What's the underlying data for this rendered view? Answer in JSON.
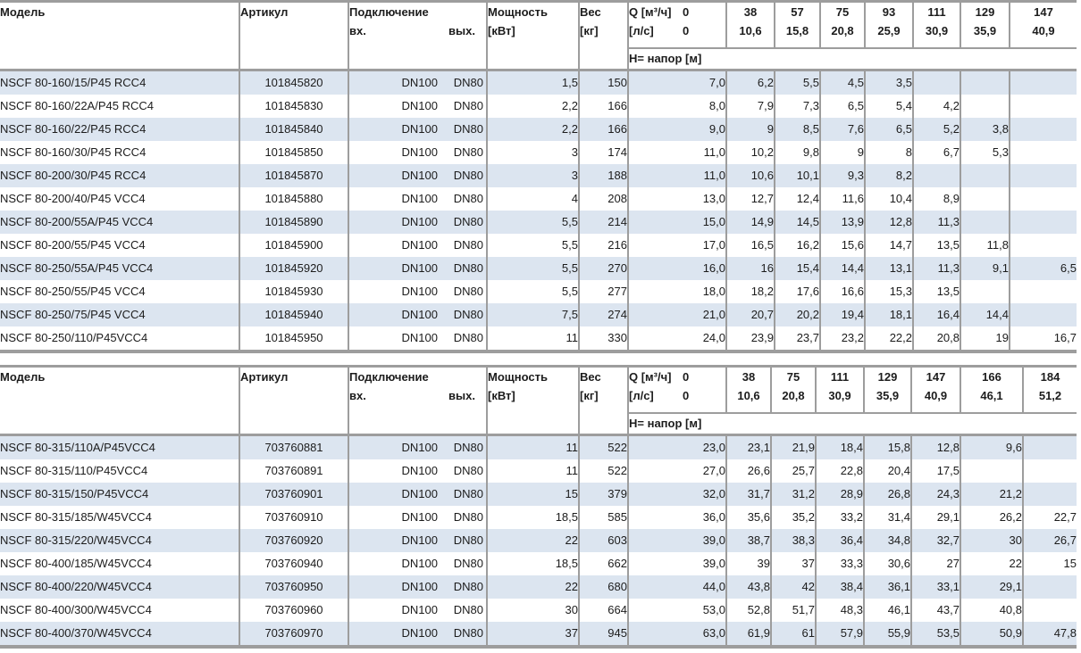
{
  "colors": {
    "row_alt": "#dce5f0",
    "border": "#9d9d9d",
    "background": "#ffffff"
  },
  "header_labels": {
    "model": "Модель",
    "article": "Артикул",
    "connection": "Подключение",
    "inlet": "вх.",
    "outlet": "вых.",
    "power_line1": "Мощность",
    "power_line2": "[кВт]",
    "weight_line1": "Вес",
    "weight_line2": "[кг]",
    "q_line1_label": "Q [м³/ч]",
    "q_line1_zero": "0",
    "q_line2_label": "[л/с]",
    "q_line2_zero": "0",
    "head_label": "H= напор [м]"
  },
  "tables": [
    {
      "q_m3h": [
        "38",
        "57",
        "75",
        "93",
        "111",
        "129",
        "147"
      ],
      "q_ls": [
        "10,6",
        "15,8",
        "20,8",
        "25,9",
        "30,9",
        "35,9",
        "40,9"
      ],
      "rows": [
        {
          "model": "NSCF 80-160/15/P45 RCC4",
          "article": "101845820",
          "inlet": "DN100",
          "outlet": "DN80",
          "power": "1,5",
          "weight": "150",
          "h": [
            "7,0",
            "6,2",
            "5,5",
            "4,5",
            "3,5",
            "",
            "",
            ""
          ]
        },
        {
          "model": "NSCF 80-160/22A/P45 RCC4",
          "article": "101845830",
          "inlet": "DN100",
          "outlet": "DN80",
          "power": "2,2",
          "weight": "166",
          "h": [
            "8,0",
            "7,9",
            "7,3",
            "6,5",
            "5,4",
            "4,2",
            "",
            ""
          ]
        },
        {
          "model": "NSCF 80-160/22/P45 RCC4",
          "article": "101845840",
          "inlet": "DN100",
          "outlet": "DN80",
          "power": "2,2",
          "weight": "166",
          "h": [
            "9,0",
            "9",
            "8,5",
            "7,6",
            "6,5",
            "5,2",
            "3,8",
            ""
          ]
        },
        {
          "model": "NSCF 80-160/30/P45 RCC4",
          "article": "101845850",
          "inlet": "DN100",
          "outlet": "DN80",
          "power": "3",
          "weight": "174",
          "h": [
            "11,0",
            "10,2",
            "9,8",
            "9",
            "8",
            "6,7",
            "5,3",
            ""
          ]
        },
        {
          "model": "NSCF 80-200/30/P45 RCC4",
          "article": "101845870",
          "inlet": "DN100",
          "outlet": "DN80",
          "power": "3",
          "weight": "188",
          "h": [
            "11,0",
            "10,6",
            "10,1",
            "9,3",
            "8,2",
            "",
            "",
            ""
          ]
        },
        {
          "model": "NSCF 80-200/40/P45 VCC4",
          "article": "101845880",
          "inlet": "DN100",
          "outlet": "DN80",
          "power": "4",
          "weight": "208",
          "h": [
            "13,0",
            "12,7",
            "12,4",
            "11,6",
            "10,4",
            "8,9",
            "",
            ""
          ]
        },
        {
          "model": "NSCF 80-200/55A/P45 VCC4",
          "article": "101845890",
          "inlet": "DN100",
          "outlet": "DN80",
          "power": "5,5",
          "weight": "214",
          "h": [
            "15,0",
            "14,9",
            "14,5",
            "13,9",
            "12,8",
            "11,3",
            "",
            ""
          ]
        },
        {
          "model": "NSCF 80-200/55/P45 VCC4",
          "article": "101845900",
          "inlet": "DN100",
          "outlet": "DN80",
          "power": "5,5",
          "weight": "216",
          "h": [
            "17,0",
            "16,5",
            "16,2",
            "15,6",
            "14,7",
            "13,5",
            "11,8",
            ""
          ]
        },
        {
          "model": "NSCF 80-250/55A/P45 VCC4",
          "article": "101845920",
          "inlet": "DN100",
          "outlet": "DN80",
          "power": "5,5",
          "weight": "270",
          "h": [
            "16,0",
            "16",
            "15,4",
            "14,4",
            "13,1",
            "11,3",
            "9,1",
            "6,5"
          ]
        },
        {
          "model": "NSCF 80-250/55/P45 VCC4",
          "article": "101845930",
          "inlet": "DN100",
          "outlet": "DN80",
          "power": "5,5",
          "weight": "277",
          "h": [
            "18,0",
            "18,2",
            "17,6",
            "16,6",
            "15,3",
            "13,5",
            "",
            ""
          ]
        },
        {
          "model": "NSCF 80-250/75/P45 VCC4",
          "article": "101845940",
          "inlet": "DN100",
          "outlet": "DN80",
          "power": "7,5",
          "weight": "274",
          "h": [
            "21,0",
            "20,7",
            "20,2",
            "19,4",
            "18,1",
            "16,4",
            "14,4",
            ""
          ]
        },
        {
          "model": "NSCF 80-250/110/P45VCC4",
          "article": "101845950",
          "inlet": "DN100",
          "outlet": "DN80",
          "power": "11",
          "weight": "330",
          "h": [
            "24,0",
            "23,9",
            "23,7",
            "23,2",
            "22,2",
            "20,8",
            "19",
            "16,7"
          ]
        }
      ]
    },
    {
      "q_m3h": [
        "38",
        "75",
        "111",
        "129",
        "147",
        "166",
        "184"
      ],
      "q_ls": [
        "10,6",
        "20,8",
        "30,9",
        "35,9",
        "40,9",
        "46,1",
        "51,2"
      ],
      "rows": [
        {
          "model": "NSCF 80-315/110A/P45VCC4",
          "article": "703760881",
          "inlet": "DN100",
          "outlet": "DN80",
          "power": "11",
          "weight": "522",
          "h": [
            "23,0",
            "23,1",
            "21,9",
            "18,4",
            "15,8",
            "12,8",
            "9,6",
            ""
          ]
        },
        {
          "model": "NSCF 80-315/110/P45VCC4",
          "article": "703760891",
          "inlet": "DN100",
          "outlet": "DN80",
          "power": "11",
          "weight": "522",
          "h": [
            "27,0",
            "26,6",
            "25,7",
            "22,8",
            "20,4",
            "17,5",
            "",
            ""
          ]
        },
        {
          "model": "NSCF 80-315/150/P45VCC4",
          "article": "703760901",
          "inlet": "DN100",
          "outlet": "DN80",
          "power": "15",
          "weight": "379",
          "h": [
            "32,0",
            "31,7",
            "31,2",
            "28,9",
            "26,8",
            "24,3",
            "21,2",
            ""
          ]
        },
        {
          "model": "NSCF 80-315/185/W45VCC4",
          "article": "703760910",
          "inlet": "DN100",
          "outlet": "DN80",
          "power": "18,5",
          "weight": "585",
          "h": [
            "36,0",
            "35,6",
            "35,2",
            "33,2",
            "31,4",
            "29,1",
            "26,2",
            "22,7"
          ]
        },
        {
          "model": "NSCF 80-315/220/W45VCC4",
          "article": "703760920",
          "inlet": "DN100",
          "outlet": "DN80",
          "power": "22",
          "weight": "603",
          "h": [
            "39,0",
            "38,7",
            "38,3",
            "36,4",
            "34,8",
            "32,7",
            "30",
            "26,7"
          ]
        },
        {
          "model": "NSCF 80-400/185/W45VCC4",
          "article": "703760940",
          "inlet": "DN100",
          "outlet": "DN80",
          "power": "18,5",
          "weight": "662",
          "h": [
            "39,0",
            "39",
            "37",
            "33,3",
            "30,6",
            "27",
            "22",
            "15"
          ]
        },
        {
          "model": "NSCF 80-400/220/W45VCC4",
          "article": "703760950",
          "inlet": "DN100",
          "outlet": "DN80",
          "power": "22",
          "weight": "680",
          "h": [
            "44,0",
            "43,8",
            "42",
            "38,4",
            "36,1",
            "33,1",
            "29,1",
            ""
          ]
        },
        {
          "model": "NSCF 80-400/300/W45VCC4",
          "article": "703760960",
          "inlet": "DN100",
          "outlet": "DN80",
          "power": "30",
          "weight": "664",
          "h": [
            "53,0",
            "52,8",
            "51,7",
            "48,3",
            "46,1",
            "43,7",
            "40,8",
            ""
          ]
        },
        {
          "model": "NSCF 80-400/370/W45VCC4",
          "article": "703760970",
          "inlet": "DN100",
          "outlet": "DN80",
          "power": "37",
          "weight": "945",
          "h": [
            "63,0",
            "61,9",
            "61",
            "57,9",
            "55,9",
            "53,5",
            "50,9",
            "47,8"
          ]
        }
      ]
    }
  ]
}
